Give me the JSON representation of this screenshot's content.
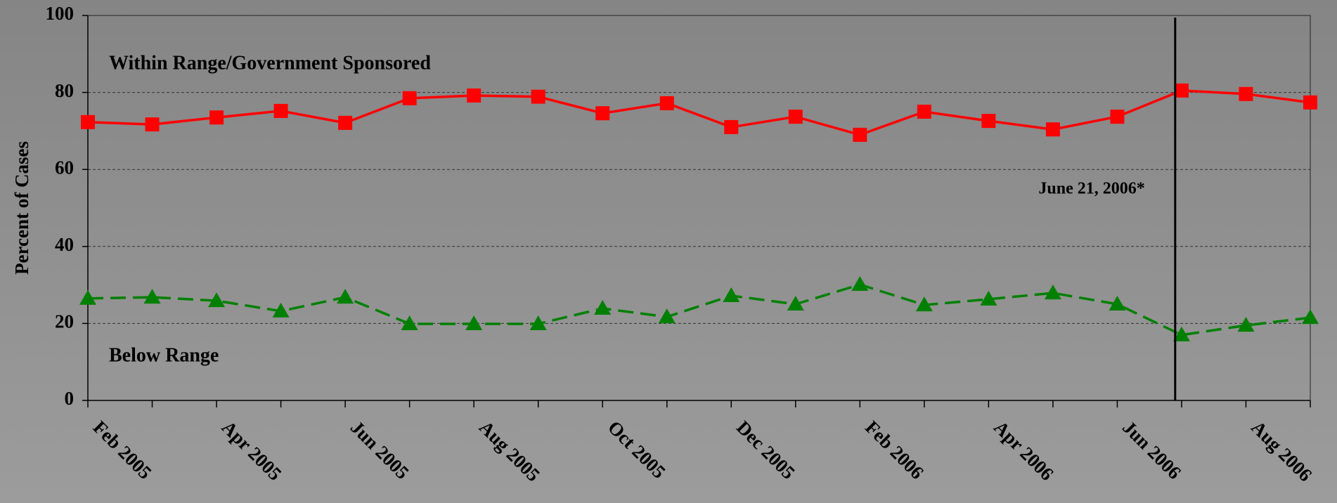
{
  "chart_data": {
    "type": "line",
    "y_label": "Percent of Cases",
    "categories": [
      "Feb 2005",
      null,
      "Apr 2005",
      null,
      "Jun 2005",
      null,
      "Aug 2005",
      null,
      "Oct 2005",
      null,
      "Dec 2005",
      null,
      "Feb 2006",
      null,
      "Apr 2006",
      null,
      "Jun 2006",
      null,
      "Aug 2006",
      null
    ],
    "series": [
      {
        "name": "Within Range/Government Sponsored",
        "color": "#ff0000",
        "marker": "square",
        "dash": false,
        "values": [
          72.3,
          71.7,
          73.5,
          75.2,
          72.1,
          78.5,
          79.2,
          78.9,
          74.6,
          77.2,
          71.0,
          73.7,
          69.0,
          75.0,
          72.6,
          70.4,
          73.7,
          80.5,
          79.6,
          77.4
        ]
      },
      {
        "name": "Below Range",
        "color": "#008000",
        "marker": "triangle",
        "dash": true,
        "values": [
          26.5,
          26.8,
          25.9,
          23.2,
          26.8,
          19.9,
          19.9,
          19.9,
          23.9,
          21.7,
          27.2,
          25.0,
          30.1,
          24.8,
          26.3,
          27.9,
          25.0,
          17.0,
          19.5,
          21.5
        ]
      }
    ],
    "annotation": {
      "label": "June 21, 2006*",
      "x": 16.9
    },
    "ylim": [
      0,
      100
    ],
    "yticks": [
      0,
      20,
      40,
      60,
      80,
      100
    ],
    "grid": true
  }
}
